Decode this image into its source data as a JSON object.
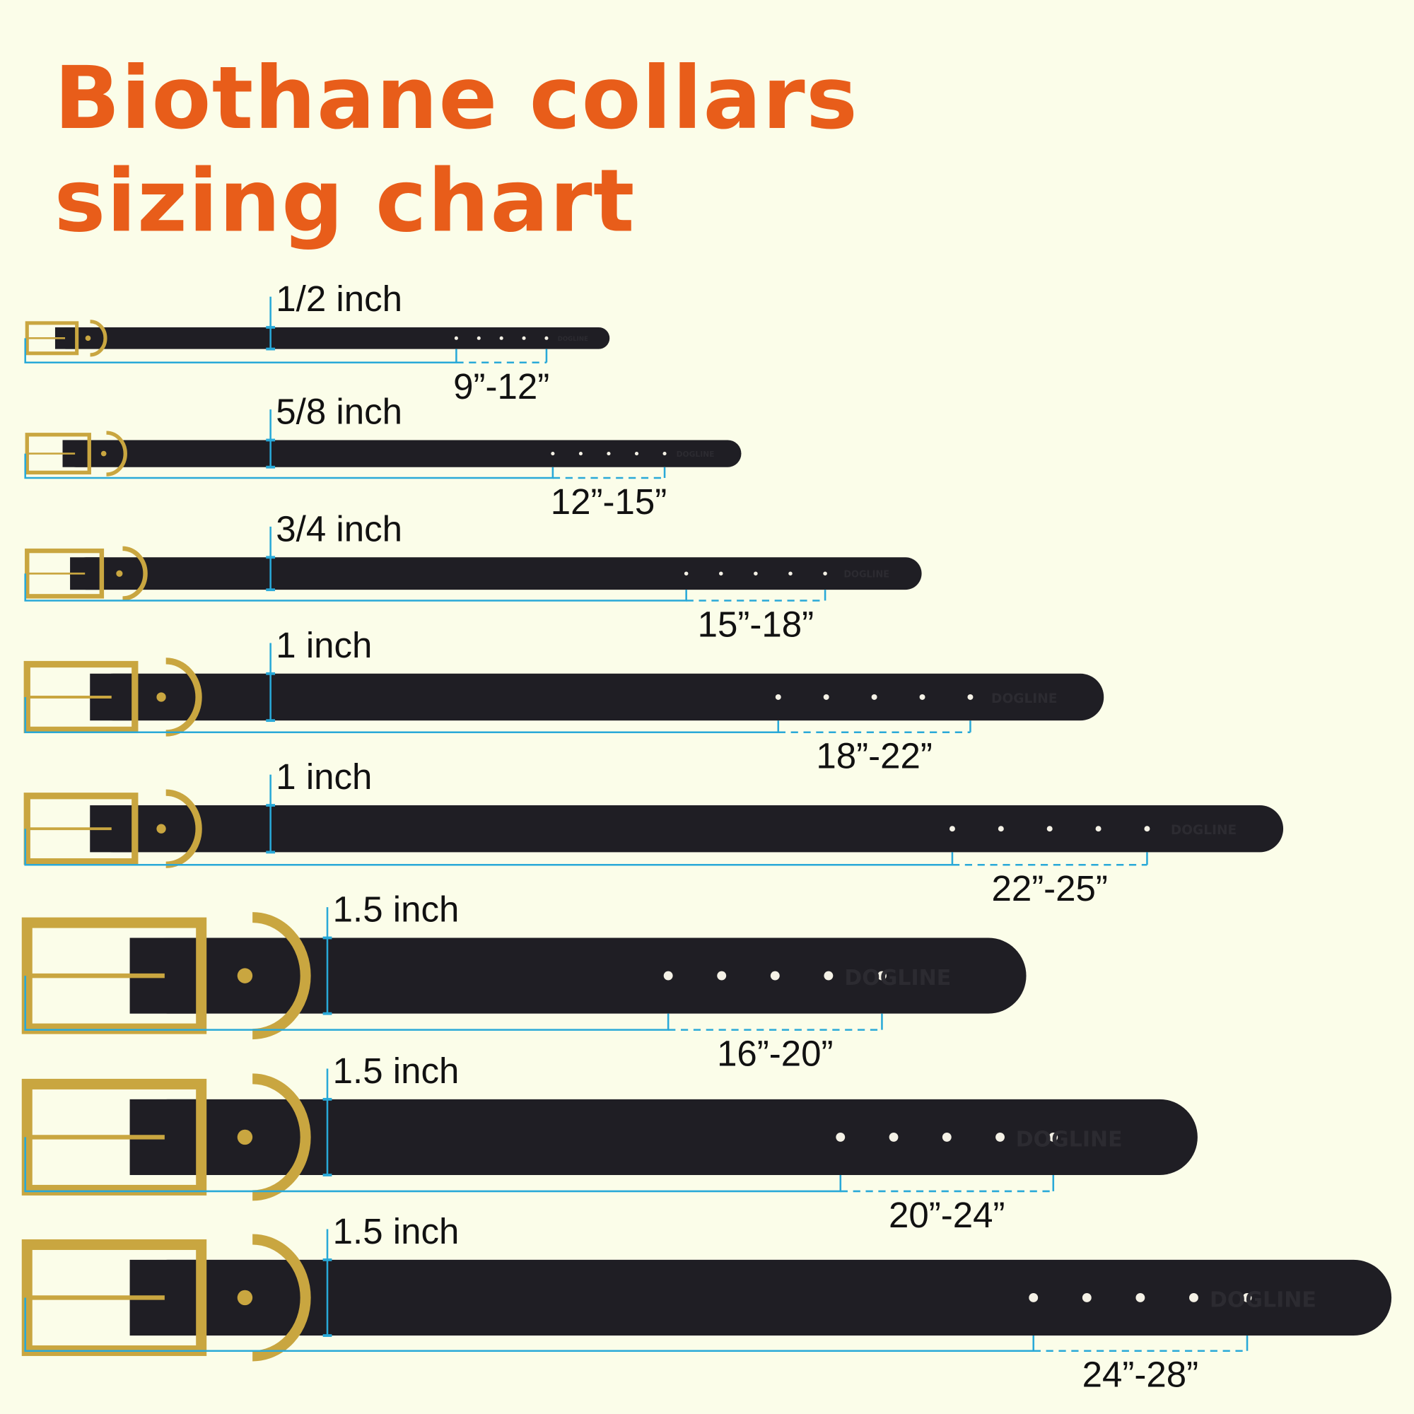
{
  "title": {
    "line1": "Biothane collars",
    "line2": "sizing chart"
  },
  "brand_mark": "DOGLINE",
  "colors": {
    "title": "#e85d1a",
    "measure_line": "#29a9d8",
    "strap": "#1f1e24",
    "hardware": "#c9a640",
    "background": "#fbfde9"
  },
  "collars": [
    {
      "width": "1/2 inch",
      "size": "9”-12”"
    },
    {
      "width": "5/8 inch",
      "size": "12”-15”"
    },
    {
      "width": "3/4 inch",
      "size": "15”-18”"
    },
    {
      "width": "1 inch",
      "size": "18”-22”"
    },
    {
      "width": "1 inch",
      "size": "22”-25”"
    },
    {
      "width": "1.5 inch",
      "size": "16”-20”"
    },
    {
      "width": "1.5 inch",
      "size": "20”-24”"
    },
    {
      "width": "1.5 inch",
      "size": "24”-28”"
    }
  ]
}
